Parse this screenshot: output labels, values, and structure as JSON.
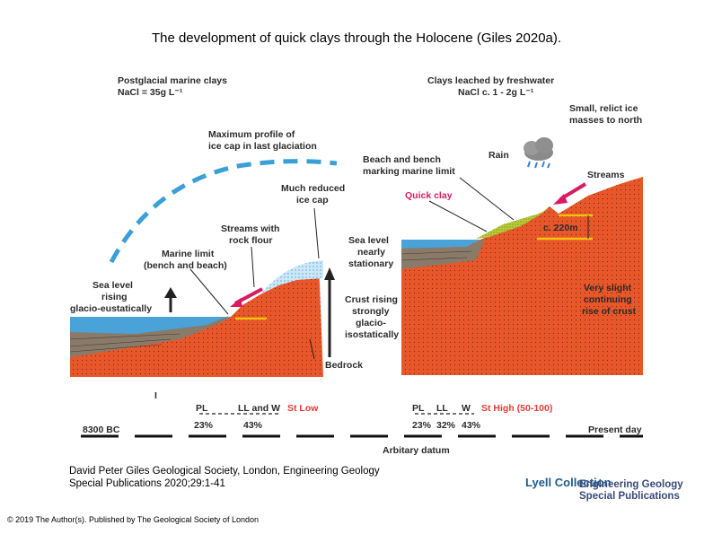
{
  "slide": {
    "title": "The development of quick clays through the Holocene (Giles 2020a).",
    "citation": "David Peter Giles Geological Society, London, Engineering Geology Special Publications 2020;29:1-41",
    "copyright": "© 2019 The Author(s). Published by The Geological Society of London"
  },
  "diagram": {
    "left": {
      "header_line1": "Postglacial marine clays",
      "header_line2": "NaCl = 35g L⁻¹",
      "ice_profile_line1": "Maximum profile of",
      "ice_profile_line2": "ice cap in last glaciation",
      "reduced_ice_line1": "Much reduced",
      "reduced_ice_line2": "ice cap",
      "streams_line1": "Streams with",
      "streams_line2": "rock flour",
      "marine_limit_line1": "Marine limit",
      "marine_limit_line2": "(bench and beach)",
      "sea_rising_line1": "Sea level",
      "sea_rising_line2": "rising",
      "sea_rising_line3": "glacio-eustatically",
      "sea_stationary_line1": "Sea level",
      "sea_stationary_line2": "nearly",
      "sea_stationary_line3": "stationary",
      "crust_line1": "Crust rising",
      "crust_line2": "strongly",
      "crust_line3": "glacio-",
      "crust_line4": "isostatically",
      "bedrock": "Bedrock"
    },
    "right": {
      "header_line1": "Clays leached by freshwater",
      "header_line2": "NaCl c. 1 - 2g L⁻¹",
      "relict_line1": "Small, relict ice",
      "relict_line2": "masses to north",
      "rain": "Rain",
      "beach_line1": "Beach and bench",
      "beach_line2": "marking marine limit",
      "streams": "Streams",
      "quick_clay": "Quick clay",
      "height": "c. 220m",
      "slight_line1": "Very slight",
      "slight_line2": "continuing",
      "slight_line3": "rise of crust"
    },
    "timeline": {
      "start": "8300 BC",
      "end": "Present day",
      "datum": "Arbitary datum",
      "marker": "I",
      "left_pl": "PL",
      "left_ll_w": "LL and W",
      "left_st": "St Low",
      "left_pct1": "23%",
      "left_pct2": "43%",
      "right_pl": "PL",
      "right_ll": "LL",
      "right_w": "W",
      "right_st": "St High (50-100)",
      "right_pct1": "23%",
      "right_pct2": "32%",
      "right_pct3": "43%"
    }
  },
  "publisher": {
    "logo_name": "Lyell Collection",
    "series_line1": "Engineering Geology",
    "series_line2": "Special Publications"
  },
  "colors": {
    "bedrock": "#e8572a",
    "clay": "#8a7a6a",
    "sea": "#4aa3d8",
    "ice_dash": "#3a9fd6",
    "arrow_pink": "#d81b60",
    "limit_yellow": "#f4c20d",
    "quick_clay_green": "#b8cc3a",
    "text_red": "#e53935"
  }
}
